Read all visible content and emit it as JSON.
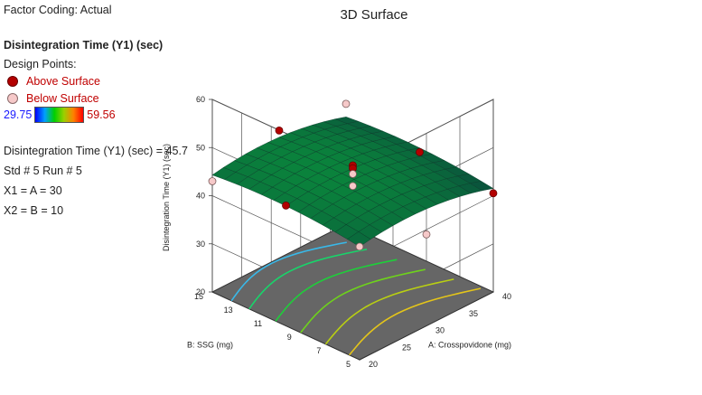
{
  "info": {
    "factor_coding": "Factor Coding: Actual",
    "response_title": "Disintegration Time (Y1) (sec)",
    "design_points_label": "Design Points:",
    "legend": {
      "above": "Above Surface",
      "below": "Below Surface",
      "above_color": "#b30000",
      "below_color": "#f6c9c9"
    },
    "scale_min": "29.75",
    "scale_max": "59.56",
    "readout": {
      "value": "Disintegration Time (Y1) (sec) = 45.7",
      "std_run": "Std # 5 Run # 5",
      "x1": "X1 = A = 30",
      "x2": "X2 = B = 10"
    }
  },
  "chart_data": {
    "type": "surface",
    "title": "3D Surface",
    "x_axis": {
      "label": "A: Crosspovidone (mg)",
      "range": [
        20,
        40
      ],
      "ticks": [
        "20",
        "25",
        "30",
        "35",
        "40"
      ]
    },
    "y_axis": {
      "label": "B: SSG (mg)",
      "range": [
        5,
        15
      ],
      "ticks": [
        "5",
        "7",
        "9",
        "11",
        "13",
        "15"
      ]
    },
    "z_axis": {
      "label": "Disintegration Time (Y1) (sec)",
      "range": [
        20,
        60
      ],
      "ticks": [
        "20",
        "30",
        "40",
        "50",
        "60"
      ]
    },
    "surface_color_scale": [
      "#0000ff",
      "#00d000",
      "#ff0000"
    ],
    "floor_color": "#666666",
    "design_points": [
      {
        "A": 20,
        "B": 15,
        "Y1": 43.0,
        "position": "below"
      },
      {
        "A": 20,
        "B": 10,
        "Y1": 45.0,
        "position": "above"
      },
      {
        "A": 20,
        "B": 5,
        "Y1": 43.5,
        "position": "below"
      },
      {
        "A": 30,
        "B": 15,
        "Y1": 46.5,
        "position": "above"
      },
      {
        "A": 30,
        "B": 10,
        "Y1": 46.3,
        "position": "above"
      },
      {
        "A": 30,
        "B": 10,
        "Y1": 45.7,
        "position": "above"
      },
      {
        "A": 30,
        "B": 10,
        "Y1": 44.5,
        "position": "below"
      },
      {
        "A": 30,
        "B": 10,
        "Y1": 42.0,
        "position": "below"
      },
      {
        "A": 30,
        "B": 5,
        "Y1": 39.0,
        "position": "below"
      },
      {
        "A": 40,
        "B": 15,
        "Y1": 45.0,
        "position": "below"
      },
      {
        "A": 40,
        "B": 10,
        "Y1": 42.0,
        "position": "above"
      },
      {
        "A": 40,
        "B": 5,
        "Y1": 40.5,
        "position": "above"
      }
    ]
  }
}
